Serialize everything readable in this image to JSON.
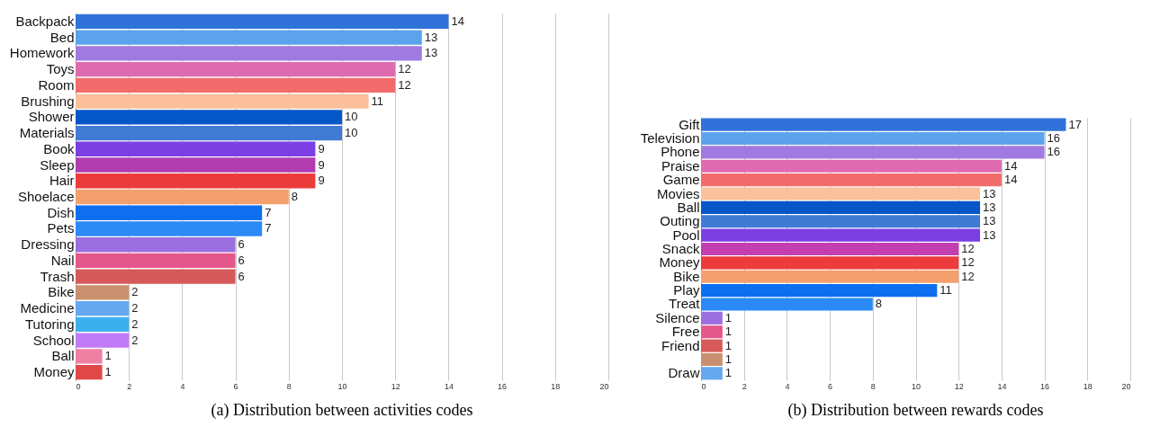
{
  "chart_data": [
    {
      "type": "bar",
      "orientation": "horizontal",
      "title": "(a)  Distribution between activities codes",
      "categories": [
        "Backpack",
        "Bed",
        "Homework",
        "Toys",
        "Room",
        "Brushing",
        "Shower",
        "Materials",
        "Book",
        "Sleep",
        "Hair",
        "Shoelace",
        "Dish",
        "Pets",
        "Dressing",
        "Nail",
        "Trash",
        "Bike",
        "Medicine",
        "Tutoring",
        "School",
        "Ball",
        "Money"
      ],
      "values": [
        14,
        13,
        13,
        12,
        12,
        11,
        10,
        10,
        9,
        9,
        9,
        8,
        7,
        7,
        6,
        6,
        6,
        2,
        2,
        2,
        2,
        1,
        1
      ],
      "colors": [
        "#2f72d9",
        "#5ba3ec",
        "#a07ae0",
        "#de6bb0",
        "#f36b6b",
        "#fbbf9b",
        "#0557c9",
        "#3f7bd4",
        "#7b3fe4",
        "#b13cb0",
        "#ec3b3b",
        "#f4a06c",
        "#0d6ff0",
        "#2b8af5",
        "#9b6fe0",
        "#e4578a",
        "#d65a5a",
        "#c9906e",
        "#64a8f0",
        "#3cb0ef",
        "#c17af7",
        "#f07fa4",
        "#e04848"
      ],
      "xlim": [
        0,
        20
      ],
      "xticks": [
        0,
        2,
        4,
        6,
        8,
        10,
        12,
        14,
        16,
        18,
        20
      ],
      "grid": "x",
      "data_labels": true,
      "legend": false
    },
    {
      "type": "bar",
      "orientation": "horizontal",
      "title": "(b)  Distribution between rewards codes",
      "categories": [
        "Gift",
        "Television",
        "Phone",
        "Praise",
        "Game",
        "Movies",
        "Ball",
        "Outing",
        "Pool",
        "Snack",
        "Money",
        "Bike",
        "Play",
        "Treat",
        "Silence",
        "Free",
        "Friend",
        null,
        "Draw"
      ],
      "values": [
        17,
        16,
        16,
        14,
        14,
        13,
        13,
        13,
        13,
        12,
        12,
        12,
        11,
        8,
        1,
        1,
        1,
        1,
        1
      ],
      "colors": [
        "#2f72d9",
        "#5ba3ec",
        "#a07ae0",
        "#de6bb0",
        "#f36b6b",
        "#fbbf9b",
        "#0557c9",
        "#3f7bd4",
        "#7b3fe4",
        "#c33fb0",
        "#ec3b3b",
        "#f4a06c",
        "#0d6ff0",
        "#2b8af5",
        "#9b6fe0",
        "#e4578a",
        "#d65a5a",
        "#c9906e",
        "#64a8f0"
      ],
      "xlim": [
        0,
        20
      ],
      "xticks": [
        0,
        2,
        4,
        6,
        8,
        10,
        12,
        14,
        16,
        18,
        20
      ],
      "grid": "x",
      "data_labels": true,
      "legend": false
    }
  ]
}
